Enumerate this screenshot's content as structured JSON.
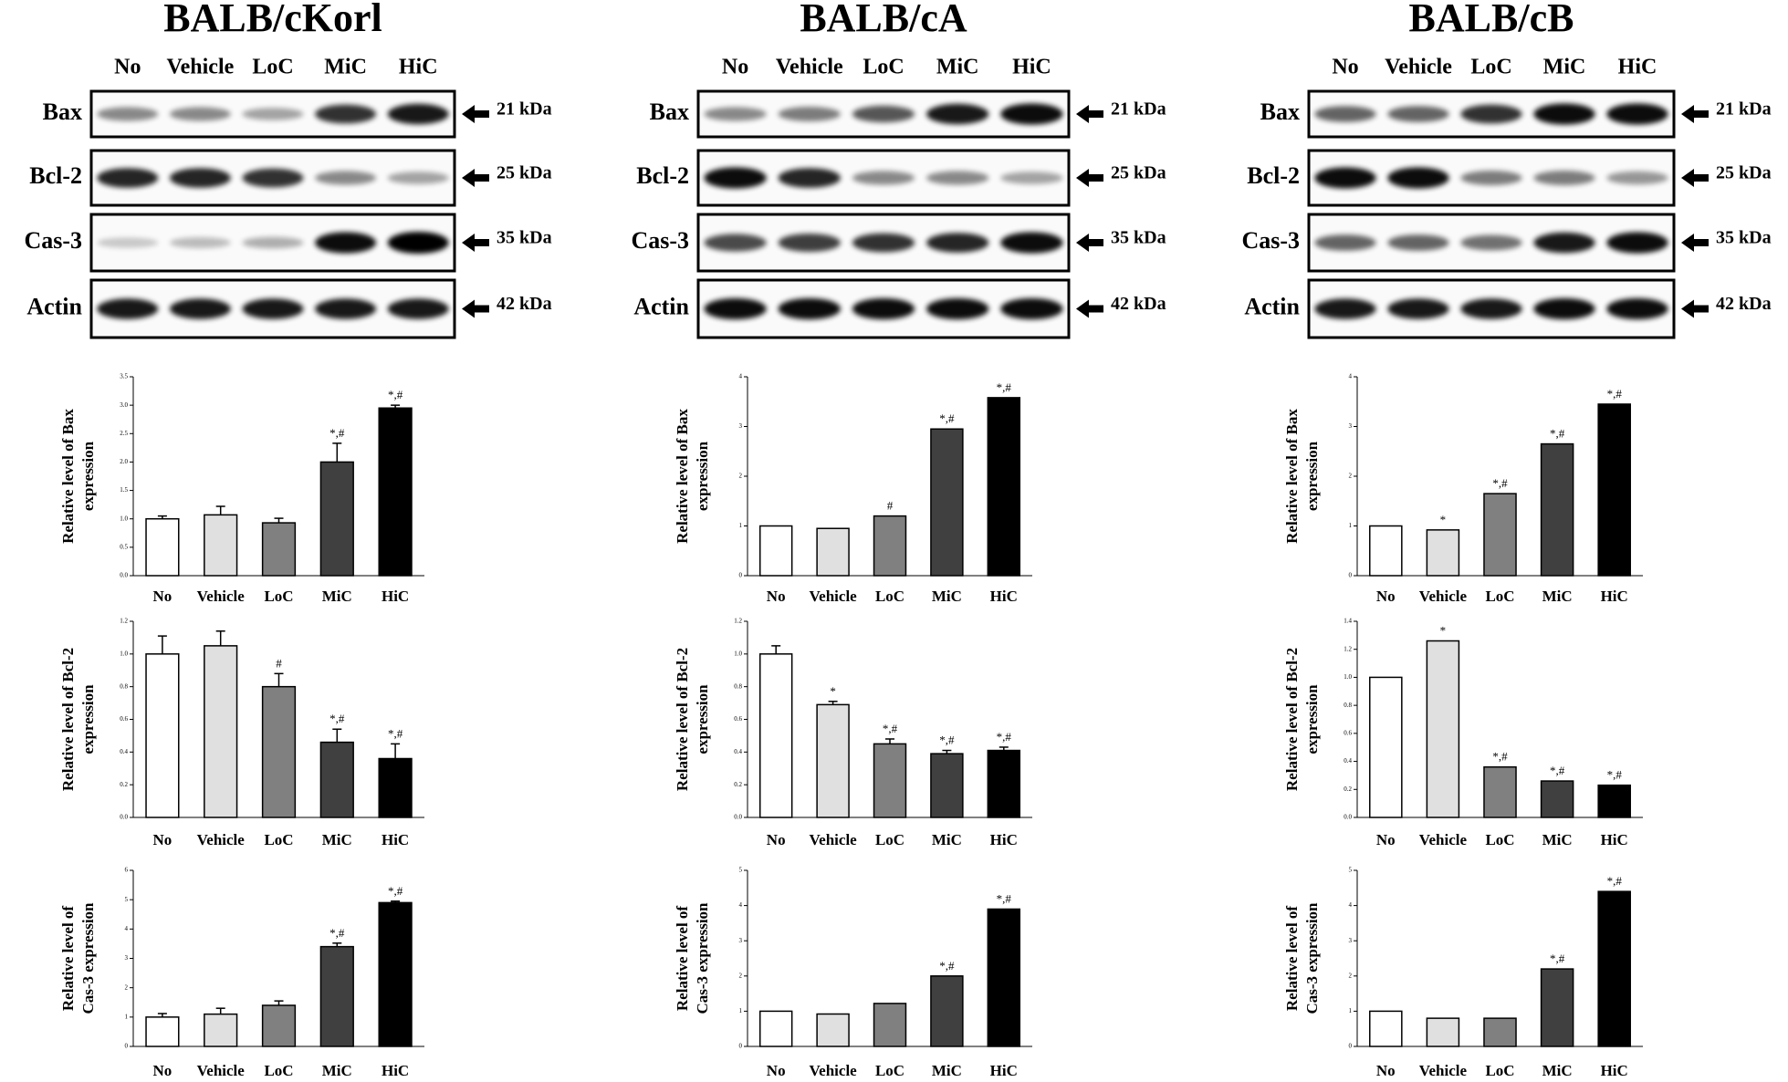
{
  "panels": [
    {
      "title": "BALB/cKorl",
      "lanes": [
        "No",
        "Vehicle",
        "LoC",
        "MiC",
        "HiC"
      ],
      "blots": [
        {
          "label": "Bax",
          "size": "21 kDa"
        },
        {
          "label": "Bcl-2",
          "size": "25 kDa"
        },
        {
          "label": "Cas-3",
          "size": "35 kDa"
        },
        {
          "label": "Actin",
          "size": "42 kDa"
        }
      ]
    },
    {
      "title": "BALB/cA",
      "lanes": [
        "No",
        "Vehicle",
        "LoC",
        "MiC",
        "HiC"
      ],
      "blots": [
        {
          "label": "Bax",
          "size": "21 kDa"
        },
        {
          "label": "Bcl-2",
          "size": "25 kDa"
        },
        {
          "label": "Cas-3",
          "size": "35 kDa"
        },
        {
          "label": "Actin",
          "size": "42 kDa"
        }
      ]
    },
    {
      "title": "BALB/cB",
      "lanes": [
        "No",
        "Vehicle",
        "LoC",
        "MiC",
        "HiC"
      ],
      "blots": [
        {
          "label": "Bax",
          "size": "21 kDa"
        },
        {
          "label": "Bcl-2",
          "size": "25 kDa"
        },
        {
          "label": "Cas-3",
          "size": "35 kDa"
        },
        {
          "label": "Actin",
          "size": "42 kDa"
        }
      ]
    }
  ],
  "chart_data": [
    {
      "type": "bar",
      "ylabel": [
        "Relative level of Bax",
        "expression"
      ],
      "categories": [
        "No",
        "Vehicle",
        "LoC",
        "MiC",
        "HiC"
      ],
      "values": [
        1.0,
        1.07,
        0.93,
        2.0,
        2.95
      ],
      "errors": [
        0.05,
        0.15,
        0.08,
        0.33,
        0.05
      ],
      "annotations": [
        null,
        null,
        null,
        "*,#",
        "*,#"
      ],
      "colors": [
        "#ffffff",
        "#e0e0e0",
        "#808080",
        "#404040",
        "#000000"
      ],
      "ylim": [
        0,
        3.5
      ],
      "yticks": [
        {
          "value": 0,
          "label": "0.0"
        },
        0.5,
        {
          "value": 1,
          "label": "1.0"
        },
        1.5,
        {
          "value": 2,
          "label": "2.0"
        },
        2.5,
        {
          "value": 3,
          "label": "3.0"
        },
        3.5
      ]
    },
    {
      "type": "bar",
      "ylabel": [
        "Relative level of Bcl-2",
        "expression"
      ],
      "categories": [
        "No",
        "Vehicle",
        "LoC",
        "MiC",
        "HiC"
      ],
      "values": [
        1.0,
        1.05,
        0.8,
        0.46,
        0.36
      ],
      "errors": [
        0.11,
        0.09,
        0.08,
        0.08,
        0.09
      ],
      "annotations": [
        null,
        null,
        "#",
        "*,#",
        "*,#"
      ],
      "colors": [
        "#ffffff",
        "#e0e0e0",
        "#808080",
        "#404040",
        "#000000"
      ],
      "ylim": [
        0,
        1.2
      ],
      "yticks": [
        {
          "value": 0,
          "label": "0.0"
        },
        0.2,
        0.4,
        0.6,
        0.8,
        {
          "value": 1,
          "label": "1.0"
        },
        1.2
      ]
    },
    {
      "type": "bar",
      "ylabel": [
        "Relative level of",
        "Cas-3 expression"
      ],
      "categories": [
        "No",
        "Vehicle",
        "LoC",
        "MiC",
        "HiC"
      ],
      "values": [
        1.0,
        1.1,
        1.4,
        3.4,
        4.9
      ],
      "errors": [
        0.12,
        0.2,
        0.15,
        0.12,
        0.05
      ],
      "annotations": [
        null,
        null,
        null,
        "*,#",
        "*,#"
      ],
      "colors": [
        "#ffffff",
        "#e0e0e0",
        "#808080",
        "#404040",
        "#000000"
      ],
      "ylim": [
        0,
        6
      ],
      "yticks": [
        0,
        1,
        2,
        3,
        4,
        5,
        6
      ]
    },
    {
      "type": "bar",
      "ylabel": [
        "Relative level of Bax",
        "expression"
      ],
      "categories": [
        "No",
        "Vehicle",
        "LoC",
        "MiC",
        "HiC"
      ],
      "values": [
        1.0,
        0.95,
        1.2,
        2.95,
        3.58
      ],
      "annotations": [
        null,
        null,
        "#",
        "*,#",
        "*,#"
      ],
      "colors": [
        "#ffffff",
        "#e0e0e0",
        "#808080",
        "#404040",
        "#000000"
      ],
      "ylim": [
        0,
        4
      ],
      "yticks": [
        0,
        1,
        2,
        3,
        4
      ]
    },
    {
      "type": "bar",
      "ylabel": [
        "Relative level of Bcl-2",
        "expression"
      ],
      "categories": [
        "No",
        "Vehicle",
        "LoC",
        "MiC",
        "HiC"
      ],
      "values": [
        1.0,
        0.69,
        0.45,
        0.39,
        0.41
      ],
      "errors": [
        0.05,
        0.02,
        0.03,
        0.02,
        0.02
      ],
      "annotations": [
        null,
        "*",
        "*,#",
        "*,#",
        "*,#"
      ],
      "colors": [
        "#ffffff",
        "#e0e0e0",
        "#808080",
        "#404040",
        "#000000"
      ],
      "ylim": [
        0,
        1.2
      ],
      "yticks": [
        {
          "value": 0,
          "label": "0.0"
        },
        0.2,
        0.4,
        0.6,
        0.8,
        {
          "value": 1,
          "label": "1.0"
        },
        1.2
      ]
    },
    {
      "type": "bar",
      "ylabel": [
        "Relative level of",
        "Cas-3 expression"
      ],
      "categories": [
        "No",
        "Vehicle",
        "LoC",
        "MiC",
        "HiC"
      ],
      "values": [
        1.0,
        0.92,
        1.22,
        2.0,
        3.9
      ],
      "annotations": [
        null,
        null,
        null,
        "*,#",
        "*,#"
      ],
      "colors": [
        "#ffffff",
        "#e0e0e0",
        "#808080",
        "#404040",
        "#000000"
      ],
      "ylim": [
        0,
        5
      ],
      "yticks": [
        0,
        1,
        2,
        3,
        4,
        5
      ]
    },
    {
      "type": "bar",
      "ylabel": [
        "Relative level of Bax",
        "expression"
      ],
      "categories": [
        "No",
        "Vehicle",
        "LoC",
        "MiC",
        "HiC"
      ],
      "values": [
        1.0,
        0.92,
        1.65,
        2.65,
        3.45
      ],
      "annotations": [
        null,
        "*",
        "*,#",
        "*,#",
        "*,#"
      ],
      "colors": [
        "#ffffff",
        "#e0e0e0",
        "#808080",
        "#404040",
        "#000000"
      ],
      "ylim": [
        0,
        4
      ],
      "yticks": [
        0,
        1,
        2,
        3,
        4
      ]
    },
    {
      "type": "bar",
      "ylabel": [
        "Relative level of Bcl-2",
        "expression"
      ],
      "categories": [
        "No",
        "Vehicle",
        "LoC",
        "MiC",
        "HiC"
      ],
      "values": [
        1.0,
        1.26,
        0.36,
        0.26,
        0.23
      ],
      "annotations": [
        null,
        "*",
        "*,#",
        "*,#",
        "*,#"
      ],
      "colors": [
        "#ffffff",
        "#e0e0e0",
        "#808080",
        "#404040",
        "#000000"
      ],
      "ylim": [
        0,
        1.4
      ],
      "yticks": [
        {
          "value": 0,
          "label": "0.0"
        },
        0.2,
        0.4,
        0.6,
        0.8,
        {
          "value": 1,
          "label": "1.0"
        },
        1.2,
        1.4
      ]
    },
    {
      "type": "bar",
      "ylabel": [
        "Relative level of",
        "Cas-3 expression"
      ],
      "categories": [
        "No",
        "Vehicle",
        "LoC",
        "MiC",
        "HiC"
      ],
      "values": [
        1.0,
        0.8,
        0.8,
        2.2,
        4.4
      ],
      "annotations": [
        null,
        null,
        null,
        "*,#",
        "*,#"
      ],
      "colors": [
        "#ffffff",
        "#e0e0e0",
        "#808080",
        "#404040",
        "#000000"
      ],
      "ylim": [
        0,
        5
      ],
      "yticks": [
        0,
        1,
        2,
        3,
        4,
        5
      ]
    }
  ]
}
